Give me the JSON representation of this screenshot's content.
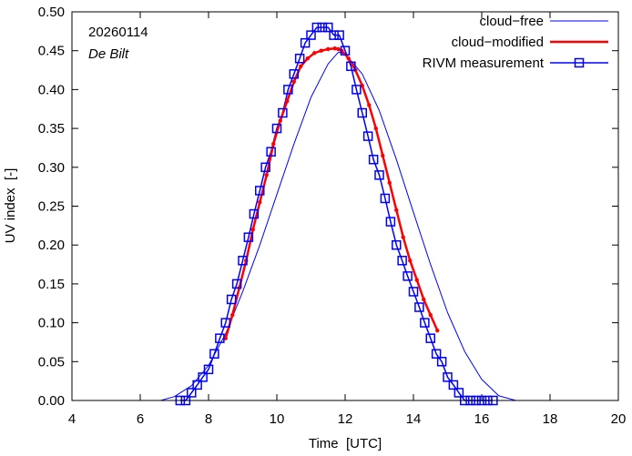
{
  "chart_data": {
    "type": "line",
    "date_label": "20260114",
    "location_label": "De Bilt",
    "xlabel": "Time  [UTC]",
    "ylabel": "UV index  [-]",
    "xlim": [
      4,
      20
    ],
    "ylim": [
      0,
      0.5
    ],
    "xticks": [
      4,
      6,
      8,
      10,
      12,
      14,
      16,
      18,
      20
    ],
    "yticks": [
      0.0,
      0.05,
      0.1,
      0.15,
      0.2,
      0.25,
      0.3,
      0.35,
      0.4,
      0.45,
      0.5
    ],
    "xtick_labels": [
      "4",
      "6",
      "8",
      "10",
      "12",
      "14",
      "16",
      "18",
      "20"
    ],
    "ytick_labels": [
      "0.00",
      "0.05",
      "0.10",
      "0.15",
      "0.20",
      "0.25",
      "0.30",
      "0.35",
      "0.40",
      "0.45",
      "0.50"
    ],
    "legend_position": "top-right",
    "series": [
      {
        "name": "cloud−free",
        "color": "#0000ff",
        "style": "thin-line",
        "x": [
          6.6,
          7.0,
          7.5,
          8.0,
          8.5,
          9.0,
          9.5,
          10.0,
          10.5,
          11.0,
          11.5,
          11.8,
          12.0,
          12.5,
          13.0,
          13.5,
          14.0,
          14.5,
          15.0,
          15.5,
          16.0,
          16.5,
          17.0
        ],
        "y": [
          0.0,
          0.005,
          0.019,
          0.045,
          0.086,
          0.14,
          0.2,
          0.265,
          0.33,
          0.39,
          0.433,
          0.448,
          0.446,
          0.42,
          0.373,
          0.31,
          0.242,
          0.175,
          0.113,
          0.063,
          0.027,
          0.006,
          0.0
        ]
      },
      {
        "name": "cloud−modified",
        "color": "#ff0000",
        "style": "thick-line",
        "x": [
          8.5,
          8.7,
          8.9,
          9.1,
          9.3,
          9.5,
          9.7,
          9.9,
          10.1,
          10.3,
          10.5,
          10.7,
          10.9,
          11.1,
          11.3,
          11.5,
          11.7,
          11.8,
          11.9,
          12.1,
          12.3,
          12.5,
          12.7,
          12.9,
          13.1,
          13.3,
          13.5,
          13.7,
          13.9,
          14.1,
          14.3,
          14.5,
          14.7
        ],
        "y": [
          0.08,
          0.11,
          0.145,
          0.18,
          0.22,
          0.255,
          0.29,
          0.33,
          0.36,
          0.385,
          0.41,
          0.43,
          0.44,
          0.447,
          0.45,
          0.452,
          0.453,
          0.452,
          0.45,
          0.44,
          0.425,
          0.405,
          0.38,
          0.35,
          0.315,
          0.28,
          0.245,
          0.21,
          0.18,
          0.155,
          0.13,
          0.11,
          0.09
        ]
      },
      {
        "name": "RIVM measurement",
        "color": "#0000ff",
        "style": "line-square-markers",
        "x": [
          7.17,
          7.33,
          7.5,
          7.67,
          7.83,
          8.0,
          8.17,
          8.33,
          8.5,
          8.67,
          8.83,
          9.0,
          9.17,
          9.33,
          9.5,
          9.67,
          9.83,
          10.0,
          10.17,
          10.33,
          10.5,
          10.67,
          10.83,
          11.0,
          11.17,
          11.33,
          11.5,
          11.67,
          11.83,
          12.0,
          12.17,
          12.33,
          12.5,
          12.67,
          12.83,
          13.0,
          13.17,
          13.33,
          13.5,
          13.67,
          13.83,
          14.0,
          14.17,
          14.33,
          14.5,
          14.67,
          14.83,
          15.0,
          15.17,
          15.33,
          15.5,
          15.67,
          15.83,
          16.0,
          16.17,
          16.33
        ],
        "y": [
          0.0,
          0.0,
          0.01,
          0.02,
          0.03,
          0.04,
          0.06,
          0.08,
          0.1,
          0.13,
          0.15,
          0.18,
          0.21,
          0.24,
          0.27,
          0.3,
          0.32,
          0.35,
          0.37,
          0.4,
          0.42,
          0.44,
          0.46,
          0.47,
          0.48,
          0.48,
          0.48,
          0.47,
          0.47,
          0.45,
          0.43,
          0.4,
          0.37,
          0.34,
          0.31,
          0.29,
          0.26,
          0.23,
          0.2,
          0.18,
          0.16,
          0.14,
          0.12,
          0.1,
          0.08,
          0.06,
          0.05,
          0.03,
          0.02,
          0.01,
          0.0,
          0.0,
          0.0,
          0.0,
          0.0,
          0.0
        ]
      }
    ]
  }
}
